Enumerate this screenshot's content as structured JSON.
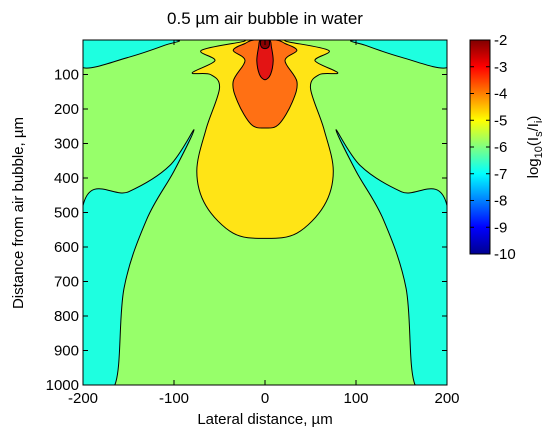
{
  "chart_data": {
    "type": "heatmap",
    "title": "0.5 µm air bubble in water",
    "xlabel": "Lateral distance, µm",
    "ylabel": "Distance from air bubble, µm",
    "colorbar_label": "log10(Is/Ii)",
    "xlim": [
      -200,
      200
    ],
    "ylim": [
      0,
      1000
    ],
    "y_reversed": true,
    "x_ticks": [
      -200,
      -100,
      0,
      100,
      200
    ],
    "x_tick_labels": [
      "-200",
      "-100",
      "0",
      "100",
      "200"
    ],
    "y_ticks": [
      100,
      200,
      300,
      400,
      500,
      600,
      700,
      800,
      900,
      1000
    ],
    "y_tick_labels": [
      "100",
      "200",
      "300",
      "400",
      "500",
      "600",
      "700",
      "800",
      "900",
      "1000"
    ],
    "colorbar_range": [
      -10,
      -2
    ],
    "colorbar_ticks": [
      -2,
      -3,
      -4,
      -5,
      -6,
      -7,
      -8,
      -9,
      -10
    ],
    "colorbar_tick_labels": [
      "-2",
      "-3",
      "-4",
      "-5",
      "-6",
      "-7",
      "-8",
      "-9",
      "-10"
    ],
    "contour_levels": [
      {
        "level": -7,
        "color": "#1effe0"
      },
      {
        "level": -6,
        "color": "#97ff6a"
      },
      {
        "level": -5,
        "color": "#ffe416"
      },
      {
        "level": -4,
        "color": "#ff7014"
      },
      {
        "level": -3,
        "color": "#e31414"
      },
      {
        "level": -2,
        "color": "#8a0000"
      }
    ],
    "regions": [
      {
        "value": -7,
        "name": "side-lobe-left",
        "outline": [
          [
            -200,
            80
          ],
          [
            -150,
            50
          ],
          [
            -110,
            15
          ],
          [
            -100,
            0
          ],
          [
            -200,
            0
          ]
        ]
      },
      {
        "value": -7,
        "name": "side-lobe-right",
        "outline": [
          [
            200,
            80
          ],
          [
            150,
            50
          ],
          [
            110,
            15
          ],
          [
            100,
            0
          ],
          [
            200,
            0
          ]
        ]
      },
      {
        "value": -7,
        "name": "wedge-left",
        "outline": [
          [
            -200,
            480
          ],
          [
            -150,
            440
          ],
          [
            -105,
            365
          ],
          [
            -78,
            260
          ],
          [
            -100,
            380
          ],
          [
            -130,
            520
          ],
          [
            -155,
            720
          ],
          [
            -165,
            1000
          ],
          [
            -200,
            1000
          ]
        ]
      },
      {
        "value": -7,
        "name": "wedge-right",
        "outline": [
          [
            200,
            480
          ],
          [
            150,
            440
          ],
          [
            105,
            365
          ],
          [
            78,
            260
          ],
          [
            100,
            380
          ],
          [
            130,
            520
          ],
          [
            155,
            720
          ],
          [
            165,
            1000
          ],
          [
            200,
            1000
          ]
        ]
      },
      {
        "value": -5,
        "name": "main-lobe",
        "outline": [
          [
            0,
            575
          ],
          [
            -35,
            560
          ],
          [
            -65,
            480
          ],
          [
            -75,
            380
          ],
          [
            -65,
            260
          ],
          [
            -50,
            140
          ],
          [
            -60,
            100
          ],
          [
            -80,
            95
          ],
          [
            -55,
            60
          ],
          [
            -70,
            30
          ],
          [
            -25,
            5
          ],
          [
            -20,
            0
          ],
          [
            20,
            0
          ],
          [
            25,
            5
          ],
          [
            70,
            30
          ],
          [
            55,
            60
          ],
          [
            80,
            95
          ],
          [
            60,
            100
          ],
          [
            50,
            140
          ],
          [
            65,
            260
          ],
          [
            75,
            380
          ],
          [
            65,
            480
          ],
          [
            35,
            560
          ]
        ]
      },
      {
        "value": -4,
        "name": "inner-lobe",
        "outline": [
          [
            0,
            255
          ],
          [
            -15,
            245
          ],
          [
            -30,
            180
          ],
          [
            -35,
            120
          ],
          [
            -22,
            60
          ],
          [
            -35,
            30
          ],
          [
            -22,
            10
          ],
          [
            -12,
            0
          ],
          [
            12,
            0
          ],
          [
            22,
            10
          ],
          [
            35,
            30
          ],
          [
            22,
            60
          ],
          [
            35,
            120
          ],
          [
            30,
            180
          ],
          [
            15,
            245
          ]
        ]
      },
      {
        "value": -3,
        "name": "core",
        "outline": [
          [
            0,
            115
          ],
          [
            -6,
            100
          ],
          [
            -9,
            60
          ],
          [
            -7,
            20
          ],
          [
            -5,
            0
          ],
          [
            5,
            0
          ],
          [
            7,
            20
          ],
          [
            9,
            60
          ],
          [
            6,
            100
          ]
        ]
      },
      {
        "value": -2,
        "name": "peak",
        "outline": [
          [
            0,
            25
          ],
          [
            -4,
            20
          ],
          [
            -5,
            10
          ],
          [
            -4,
            0
          ],
          [
            4,
            0
          ],
          [
            5,
            10
          ],
          [
            4,
            20
          ]
        ]
      }
    ]
  }
}
